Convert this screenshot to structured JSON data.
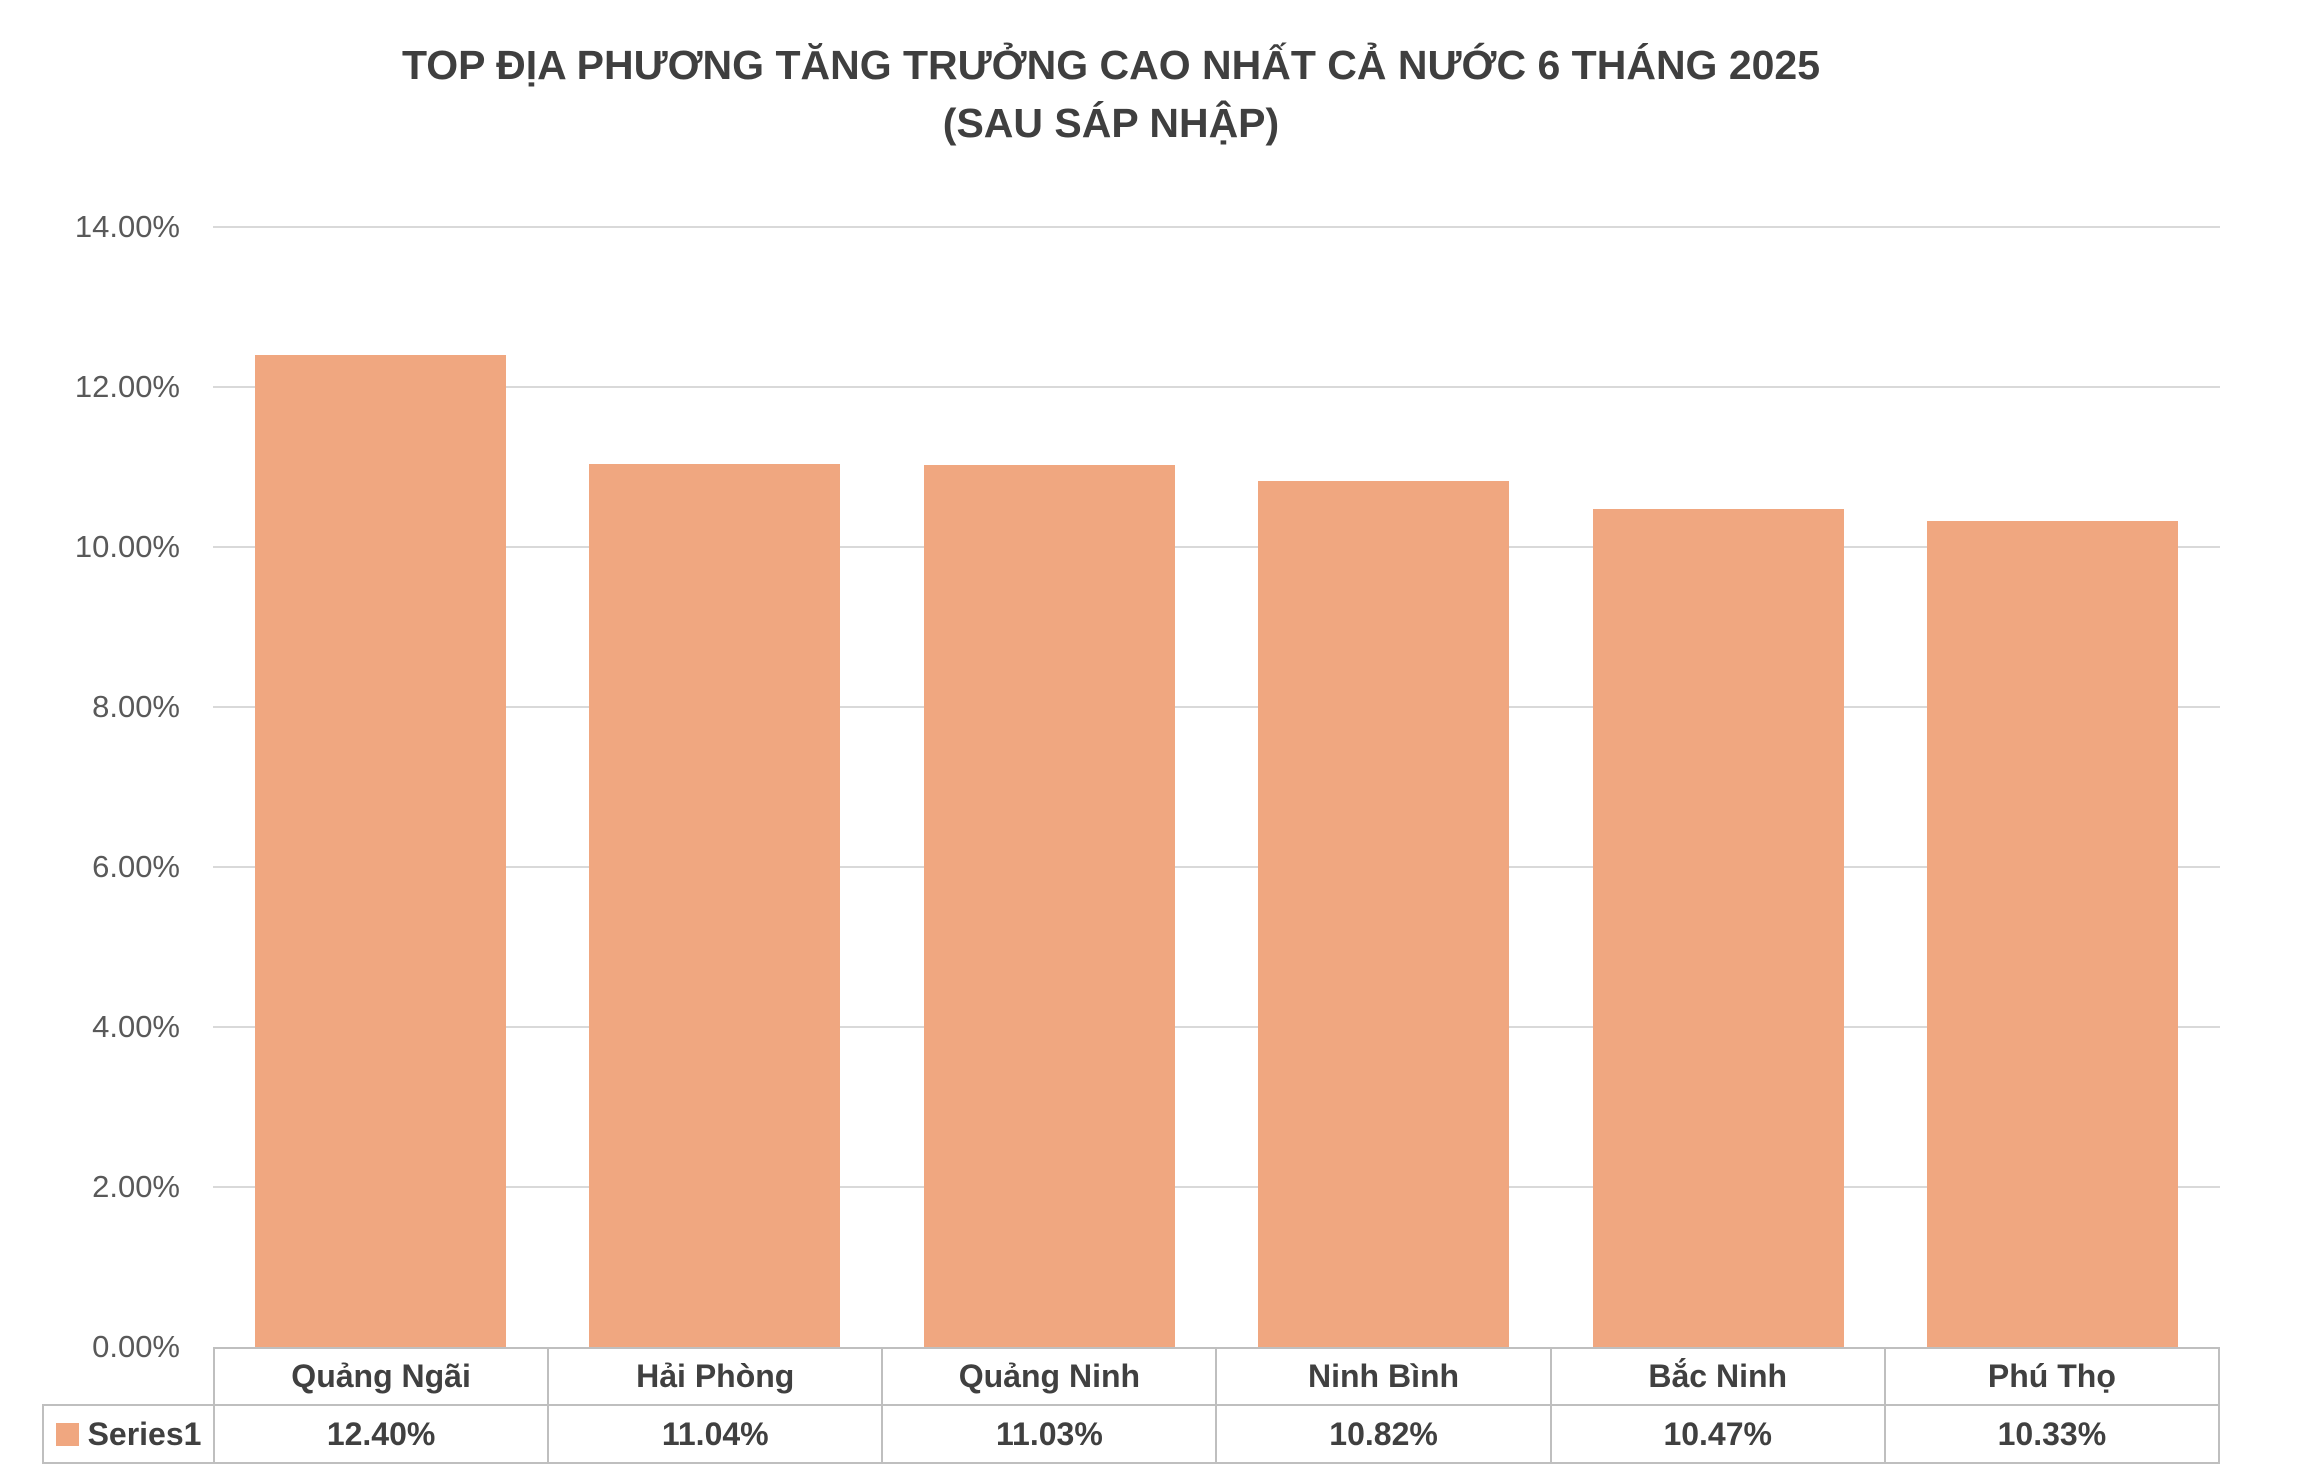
{
  "title": {
    "line1": "TOP ĐỊA PHƯƠNG TĂNG TRƯỞNG CAO NHẤT CẢ NƯỚC 6 THÁNG 2025",
    "line2": "(SAU SÁP NHẬP)"
  },
  "chart_data": {
    "type": "bar",
    "title": "TOP ĐỊA PHƯƠNG TĂNG TRƯỞNG CAO NHẤT CẢ NƯỚC 6 THÁNG 2025 (SAU SÁP NHẬP)",
    "categories": [
      "Quảng Ngãi",
      "Hải Phòng",
      "Quảng Ninh",
      "Ninh Bình",
      "Bắc Ninh",
      "Phú Thọ"
    ],
    "series": [
      {
        "name": "Series1",
        "values": [
          12.4,
          11.04,
          11.03,
          10.82,
          10.47,
          10.33
        ],
        "value_labels": [
          "12.40%",
          "11.04%",
          "11.03%",
          "10.82%",
          "10.47%",
          "10.33%"
        ]
      }
    ],
    "xlabel": "",
    "ylabel": "",
    "ylim": [
      0,
      14
    ],
    "ytick_labels_top_to_bottom": [
      "14.00%",
      "12.00%",
      "10.00%",
      "8.00%",
      "6.00%",
      "4.00%",
      "2.00%",
      "0.00%"
    ],
    "grid": true,
    "legend_position": "bottom-left of data table",
    "colors": {
      "bar_fill": "#F0A780",
      "gridline": "#D9D9D9",
      "table_border": "#BFBFBF",
      "title_text": "#3F3F3F",
      "axis_text": "#595959",
      "table_text": "#404040"
    }
  }
}
